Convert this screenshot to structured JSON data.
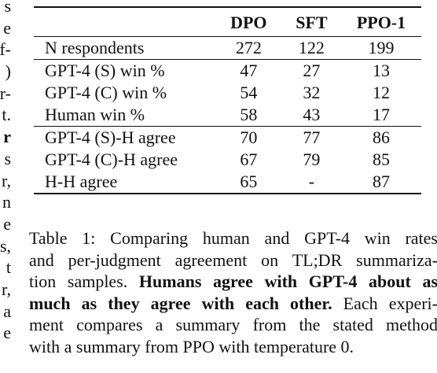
{
  "left_fragments": [
    {
      "text": "s",
      "bold": false
    },
    {
      "text": "e",
      "bold": false
    },
    {
      "text": "f-",
      "bold": false
    },
    {
      "text": ")",
      "bold": false
    },
    {
      "text": "r-",
      "bold": false
    },
    {
      "text": "t.",
      "bold": false
    },
    {
      "text": "r",
      "bold": true
    },
    {
      "text": "s",
      "bold": false
    },
    {
      "text": "r,",
      "bold": false
    },
    {
      "text": "n",
      "bold": false
    },
    {
      "text": "e",
      "bold": false
    },
    {
      "text": "s,",
      "bold": false
    },
    {
      "text": "t",
      "bold": false
    },
    {
      "text": "r,",
      "bold": false
    },
    {
      "text": "a",
      "bold": false
    },
    {
      "text": "e",
      "bold": false
    }
  ],
  "table": {
    "columns": [
      "DPO",
      "SFT",
      "PPO-1"
    ],
    "rows": [
      {
        "label": "N respondents",
        "values": [
          "272",
          "122",
          "199"
        ]
      },
      {
        "label": "GPT-4 (S) win %",
        "values": [
          "47",
          "27",
          "13"
        ]
      },
      {
        "label": "GPT-4 (C) win %",
        "values": [
          "54",
          "32",
          "12"
        ]
      },
      {
        "label": "Human win %",
        "values": [
          "58",
          "43",
          "17"
        ]
      },
      {
        "label": "GPT-4 (S)-H agree",
        "values": [
          "70",
          "77",
          "86"
        ]
      },
      {
        "label": "GPT-4 (C)-H agree",
        "values": [
          "67",
          "79",
          "85"
        ]
      },
      {
        "label": "H-H agree",
        "values": [
          "65",
          "-",
          "87"
        ]
      }
    ]
  },
  "caption": {
    "line1": "Table 1: Comparing human and GPT-4 win rates",
    "line2": "and per-judgment agreement on TL;DR summariza-",
    "line3_plain": "tion samples.",
    "line3_bold": "Humans agree with GPT-4 about as",
    "line4_bold": "much as they agree with each other.",
    "line4_plain": "Each experi-",
    "line5": "ment compares a summary from the stated method",
    "line6": "with a summary from PPO with temperature 0."
  }
}
